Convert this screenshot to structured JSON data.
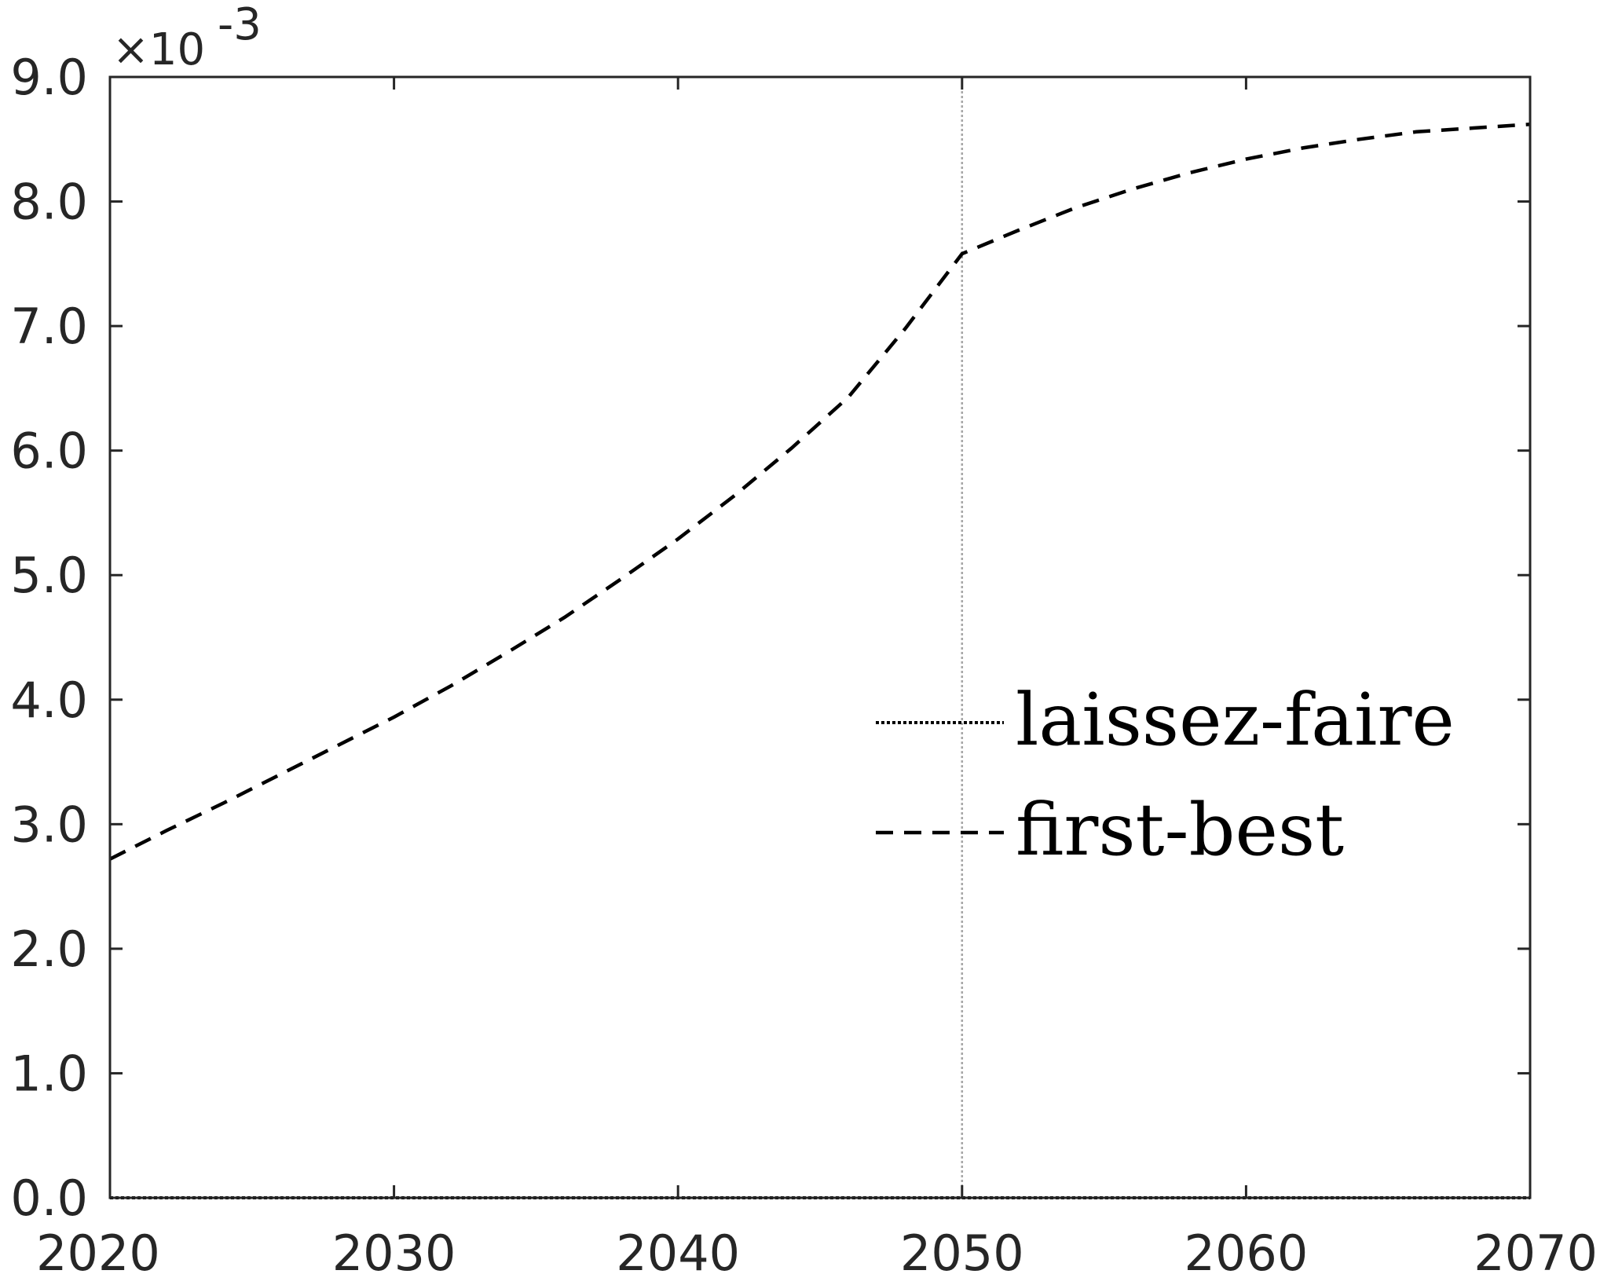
{
  "chart_data": {
    "type": "line",
    "title": "",
    "xlabel": "",
    "ylabel": "",
    "y_exponent": "-3",
    "xlim": [
      2020,
      2070
    ],
    "ylim": [
      0.0,
      9.0
    ],
    "x_ticks": [
      2020,
      2030,
      2040,
      2050,
      2060,
      2070
    ],
    "x_tick_labels": [
      "2020",
      "2030",
      "2040",
      "2050",
      "2060",
      "2070"
    ],
    "y_ticks": [
      0,
      1,
      2,
      3,
      4,
      5,
      6,
      7,
      8,
      9
    ],
    "y_tick_labels": [
      "0.0",
      "1.0",
      "2.0",
      "3.0",
      "4.0",
      "5.0",
      "6.0",
      "7.0",
      "8.0",
      "9.0"
    ],
    "grid": false,
    "vertical_reference_line": 2050,
    "legend_placement": "center-right",
    "series": [
      {
        "name": "laissez-faire",
        "style": "dotted",
        "color": "#000000",
        "x": [
          2020,
          2025,
          2030,
          2035,
          2040,
          2045,
          2050,
          2055,
          2060,
          2065,
          2070
        ],
        "y": [
          0,
          0,
          0,
          0,
          0,
          0,
          0,
          0,
          0,
          0,
          0
        ]
      },
      {
        "name": "first-best",
        "style": "dashed",
        "color": "#000000",
        "x": [
          2020,
          2022,
          2024,
          2026,
          2028,
          2030,
          2032,
          2034,
          2036,
          2038,
          2040,
          2042,
          2044,
          2046,
          2048,
          2050,
          2052,
          2054,
          2056,
          2058,
          2060,
          2062,
          2064,
          2066,
          2068,
          2070
        ],
        "y": [
          2.72,
          2.95,
          3.17,
          3.4,
          3.63,
          3.86,
          4.11,
          4.38,
          4.66,
          4.97,
          5.29,
          5.64,
          6.02,
          6.43,
          6.98,
          7.58,
          7.77,
          7.95,
          8.1,
          8.23,
          8.34,
          8.43,
          8.5,
          8.56,
          8.59,
          8.62
        ]
      }
    ]
  }
}
